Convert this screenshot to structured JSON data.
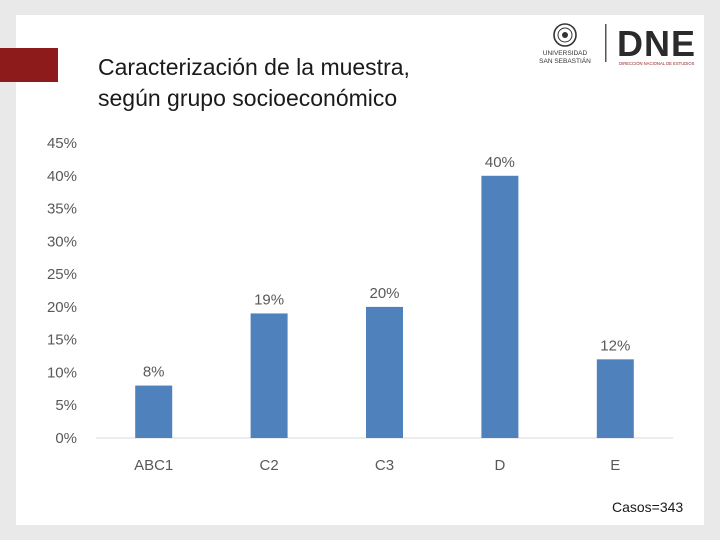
{
  "slide": {
    "title_line1": "Caracterización de la muestra,",
    "title_line2": "según grupo socioeconómico",
    "logo_university_line1": "UNIVERSIDAD",
    "logo_university_line2": "SAN SEBASTIÁN",
    "logo_dne": "DNE",
    "logo_dne_sub": "DIRECCIÓN NACIONAL DE ESTUDIOS",
    "cases_note": "Casos=343",
    "accent_color": "#8e1b1b",
    "bar_color": "#4f81bd"
  },
  "chart_data": {
    "type": "bar",
    "categories": [
      "ABC1",
      "C2",
      "C3",
      "D",
      "E"
    ],
    "values": [
      8,
      19,
      20,
      40,
      12
    ],
    "data_labels": [
      "8%",
      "19%",
      "20%",
      "40%",
      "12%"
    ],
    "yticks": [
      0,
      5,
      10,
      15,
      20,
      25,
      30,
      35,
      40,
      45
    ],
    "ytick_labels": [
      "0%",
      "5%",
      "10%",
      "15%",
      "20%",
      "25%",
      "30%",
      "35%",
      "40%",
      "45%"
    ],
    "ylim": [
      0,
      45
    ],
    "grid": false,
    "legend": "none"
  }
}
